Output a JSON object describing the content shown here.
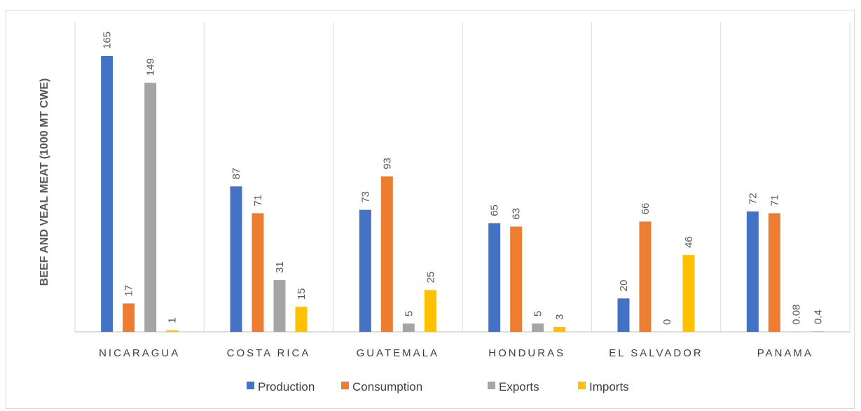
{
  "chart_data": {
    "type": "bar",
    "title": "",
    "xlabel": "",
    "ylabel": "BEEF AND VEAL MEAT (1000 MT CWE)",
    "categories": [
      "NICARAGUA",
      "COSTA RICA",
      "GUATEMALA",
      "HONDURAS",
      "EL SALVADOR",
      "PANAMA"
    ],
    "series": [
      {
        "name": "Production",
        "color": "#4472c4",
        "values": [
          165,
          87,
          73,
          65,
          20,
          72
        ],
        "labels": [
          "165",
          "87",
          "73",
          "65",
          "20",
          "72"
        ]
      },
      {
        "name": "Consumption",
        "color": "#ed7d31",
        "values": [
          17,
          71,
          93,
          63,
          66,
          71
        ],
        "labels": [
          "17",
          "71",
          "93",
          "63",
          "66",
          "71"
        ]
      },
      {
        "name": "Exports",
        "color": "#a5a5a5",
        "values": [
          149,
          31,
          5,
          5,
          0,
          0.08
        ],
        "labels": [
          "149",
          "31",
          "5",
          "5",
          "0",
          "0.08"
        ]
      },
      {
        "name": "Imports",
        "color": "#ffc000",
        "values": [
          1,
          15,
          25,
          3,
          46,
          0.4
        ],
        "labels": [
          "1",
          "15",
          "25",
          "3",
          "46",
          "0.4"
        ]
      }
    ],
    "ylim": [
      0,
      165
    ],
    "grid": false,
    "legend_position": "bottom"
  }
}
